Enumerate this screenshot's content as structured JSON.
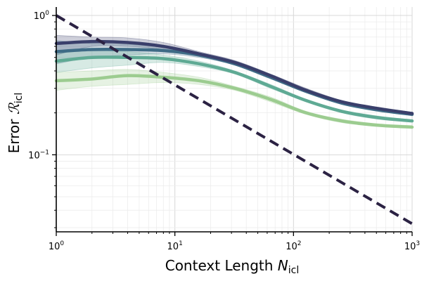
{
  "chart_data": {
    "type": "line",
    "x_scale": "log",
    "y_scale": "log",
    "xlim": [
      1,
      1000
    ],
    "ylim": [
      0.028,
      1.15
    ],
    "grid": true,
    "legend": "none",
    "xlabel": {
      "main": "Context Length ",
      "var": "N",
      "sub": "icl"
    },
    "ylabel": {
      "main": "Error ",
      "var": "ℛ",
      "sub": "icl"
    },
    "x_ticks": [
      {
        "value": 1,
        "base": "10",
        "exp": "0"
      },
      {
        "value": 10,
        "base": "10",
        "exp": "1"
      },
      {
        "value": 100,
        "base": "10",
        "exp": "2"
      },
      {
        "value": 1000,
        "base": "10",
        "exp": "3"
      }
    ],
    "y_ticks": [
      {
        "value": 1,
        "base": "10",
        "exp": "0"
      },
      {
        "value": 0.1,
        "base": "10",
        "exp": "−1"
      }
    ],
    "colors": {
      "series": [
        "#3a3f6b",
        "#3e6b86",
        "#5faa94",
        "#9ccc90"
      ],
      "band_alpha": 0.25,
      "reference": "#2b2243"
    },
    "reference_line": {
      "style": "dashed",
      "x": [
        1,
        1000
      ],
      "y": [
        1.0,
        0.032
      ]
    },
    "series": [
      {
        "x": [
          1,
          2,
          4,
          8,
          16,
          32,
          64,
          128,
          256,
          512,
          1000
        ],
        "y": [
          0.63,
          0.65,
          0.64,
          0.6,
          0.53,
          0.46,
          0.37,
          0.29,
          0.24,
          0.215,
          0.198
        ],
        "lower": [
          0.52,
          0.6,
          0.6,
          0.57,
          0.51,
          0.45,
          0.36,
          0.285,
          0.235,
          0.21,
          0.195
        ],
        "upper": [
          0.72,
          0.7,
          0.69,
          0.64,
          0.55,
          0.475,
          0.38,
          0.3,
          0.245,
          0.22,
          0.202
        ]
      },
      {
        "x": [
          1,
          2,
          4,
          8,
          16,
          32,
          64,
          128,
          256,
          512,
          1000
        ],
        "y": [
          0.55,
          0.57,
          0.57,
          0.56,
          0.52,
          0.45,
          0.36,
          0.285,
          0.235,
          0.21,
          0.195
        ],
        "lower": [
          0.45,
          0.5,
          0.52,
          0.53,
          0.5,
          0.44,
          0.355,
          0.28,
          0.23,
          0.205,
          0.192
        ],
        "upper": [
          0.66,
          0.63,
          0.62,
          0.59,
          0.54,
          0.46,
          0.37,
          0.29,
          0.24,
          0.215,
          0.198
        ]
      },
      {
        "x": [
          1,
          2,
          4,
          8,
          16,
          32,
          64,
          128,
          256,
          512,
          1000
        ],
        "y": [
          0.47,
          0.5,
          0.5,
          0.49,
          0.45,
          0.39,
          0.31,
          0.245,
          0.205,
          0.185,
          0.175
        ],
        "lower": [
          0.39,
          0.42,
          0.44,
          0.46,
          0.43,
          0.38,
          0.3,
          0.24,
          0.2,
          0.18,
          0.172
        ],
        "upper": [
          0.55,
          0.56,
          0.55,
          0.52,
          0.47,
          0.4,
          0.32,
          0.25,
          0.21,
          0.19,
          0.178
        ]
      },
      {
        "x": [
          1,
          2,
          4,
          8,
          16,
          32,
          64,
          128,
          256,
          512,
          1000
        ],
        "y": [
          0.34,
          0.35,
          0.37,
          0.36,
          0.34,
          0.3,
          0.25,
          0.2,
          0.175,
          0.163,
          0.158
        ],
        "lower": [
          0.29,
          0.31,
          0.32,
          0.33,
          0.32,
          0.29,
          0.24,
          0.195,
          0.17,
          0.16,
          0.155
        ],
        "upper": [
          0.39,
          0.4,
          0.41,
          0.39,
          0.36,
          0.31,
          0.26,
          0.205,
          0.18,
          0.167,
          0.162
        ]
      }
    ]
  }
}
